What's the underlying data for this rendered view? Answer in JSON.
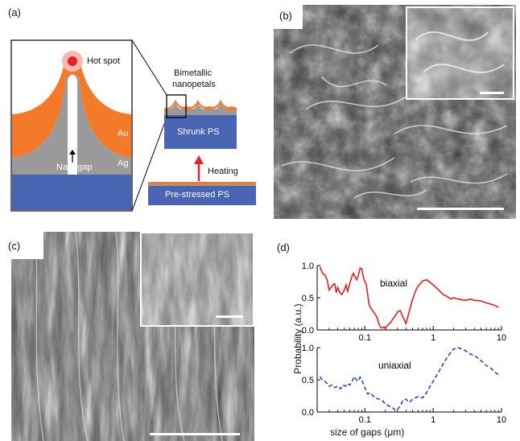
{
  "panels": {
    "a": {
      "label": "(a)",
      "hot_spot": "Hot spot",
      "au": "Au",
      "ag": "Ag",
      "nanogap": "Nanogap",
      "bimetallic_line1": "Bimetallic",
      "bimetallic_line2": "nanopetals",
      "shrunk_ps": "Shrunk PS",
      "heating": "Heating",
      "prestressed_ps": "Pre-stressed PS",
      "colors": {
        "substrate": "#4a64b4",
        "au": "#f47a2a",
        "ag": "#9a9a9a",
        "hotspot": "#e8202a",
        "arrow": "#e8202a"
      }
    },
    "b": {
      "label": "(b)"
    },
    "c": {
      "label": "(c)"
    },
    "d": {
      "label": "(d)",
      "ylabel": "Probability (a.u.)",
      "xlabel": "size of gaps (μm)"
    }
  },
  "chart_data": [
    {
      "type": "line",
      "name": "biaxial",
      "label": "biaxial",
      "color": "#e02020",
      "style": "solid",
      "xscale": "log",
      "xlim": [
        0.02,
        10
      ],
      "ylim": [
        0,
        1.0
      ],
      "yticks": [
        "0.0",
        "0.5",
        "1.0"
      ],
      "xticks": [
        "0.1",
        "1",
        "10"
      ],
      "x": [
        0.022,
        0.024,
        0.026,
        0.028,
        0.03,
        0.032,
        0.034,
        0.036,
        0.038,
        0.04,
        0.043,
        0.046,
        0.05,
        0.053,
        0.056,
        0.06,
        0.064,
        0.068,
        0.072,
        0.076,
        0.08,
        0.085,
        0.09,
        0.095,
        0.1,
        0.105,
        0.11,
        0.115,
        0.12,
        0.13,
        0.14,
        0.15,
        0.16,
        0.17,
        0.18,
        0.19,
        0.2,
        0.21,
        0.22,
        0.24,
        0.26,
        0.28,
        0.3,
        0.33,
        0.36,
        0.4,
        0.45,
        0.5,
        0.55,
        0.6,
        0.65,
        0.7,
        0.8,
        0.9,
        1.0,
        1.2,
        1.4,
        1.6,
        1.8,
        2.0,
        2.3,
        2.6,
        3.0,
        3.5,
        4.0,
        5.0,
        6.0,
        7.0,
        8.0,
        9.0
      ],
      "y": [
        0.98,
        0.88,
        0.85,
        0.78,
        0.62,
        0.66,
        0.7,
        0.72,
        0.58,
        0.66,
        0.58,
        0.55,
        0.62,
        0.7,
        0.6,
        0.72,
        0.82,
        0.88,
        0.82,
        0.78,
        0.84,
        0.96,
        0.95,
        0.82,
        0.75,
        0.7,
        0.55,
        0.4,
        0.35,
        0.3,
        0.25,
        0.2,
        0.1,
        0.04,
        0.03,
        0.05,
        0.02,
        0.06,
        0.08,
        0.12,
        0.18,
        0.22,
        0.28,
        0.3,
        0.2,
        0.1,
        0.3,
        0.48,
        0.6,
        0.68,
        0.72,
        0.76,
        0.78,
        0.74,
        0.7,
        0.62,
        0.55,
        0.52,
        0.48,
        0.5,
        0.48,
        0.47,
        0.46,
        0.48,
        0.46,
        0.45,
        0.42,
        0.4,
        0.38,
        0.35
      ]
    },
    {
      "type": "line",
      "name": "uniaxial",
      "label": "uniaxial",
      "color": "#2a4ba8",
      "style": "dashed",
      "xscale": "log",
      "xlim": [
        0.02,
        10
      ],
      "ylim": [
        0,
        1.0
      ],
      "yticks": [
        "0.0",
        "0.5",
        "1.0"
      ],
      "xticks": [
        "0.1",
        "1",
        "10"
      ],
      "x": [
        0.022,
        0.024,
        0.026,
        0.028,
        0.03,
        0.033,
        0.036,
        0.04,
        0.044,
        0.048,
        0.052,
        0.056,
        0.06,
        0.065,
        0.07,
        0.075,
        0.08,
        0.085,
        0.09,
        0.1,
        0.11,
        0.12,
        0.14,
        0.16,
        0.18,
        0.2,
        0.22,
        0.24,
        0.26,
        0.28,
        0.3,
        0.33,
        0.36,
        0.4,
        0.45,
        0.5,
        0.55,
        0.6,
        0.7,
        0.8,
        0.9,
        1.0,
        1.2,
        1.4,
        1.6,
        1.8,
        2.0,
        2.3,
        2.6,
        3.0,
        3.5,
        4.0,
        5.0,
        6.0,
        7.0,
        8.0,
        9.0
      ],
      "y": [
        0.55,
        0.5,
        0.48,
        0.44,
        0.4,
        0.42,
        0.38,
        0.4,
        0.36,
        0.42,
        0.4,
        0.44,
        0.42,
        0.48,
        0.55,
        0.5,
        0.48,
        0.54,
        0.5,
        0.38,
        0.28,
        0.3,
        0.22,
        0.2,
        0.18,
        0.12,
        0.1,
        0.08,
        0.06,
        0.02,
        0.04,
        0.1,
        0.18,
        0.2,
        0.15,
        0.2,
        0.22,
        0.24,
        0.22,
        0.3,
        0.4,
        0.48,
        0.62,
        0.75,
        0.85,
        0.92,
        0.98,
        1.0,
        0.98,
        0.95,
        0.9,
        0.88,
        0.8,
        0.72,
        0.68,
        0.62,
        0.58
      ]
    }
  ]
}
